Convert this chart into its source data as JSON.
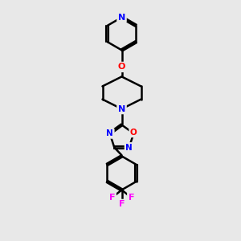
{
  "bg_color": "#e8e8e8",
  "atom_colors": {
    "N": "#0000FF",
    "O": "#FF0000",
    "F": "#FF00FF",
    "C": "#000000"
  },
  "bond_color": "#000000",
  "bond_width": 1.8,
  "figsize": [
    3.0,
    3.0
  ],
  "dpi": 100
}
